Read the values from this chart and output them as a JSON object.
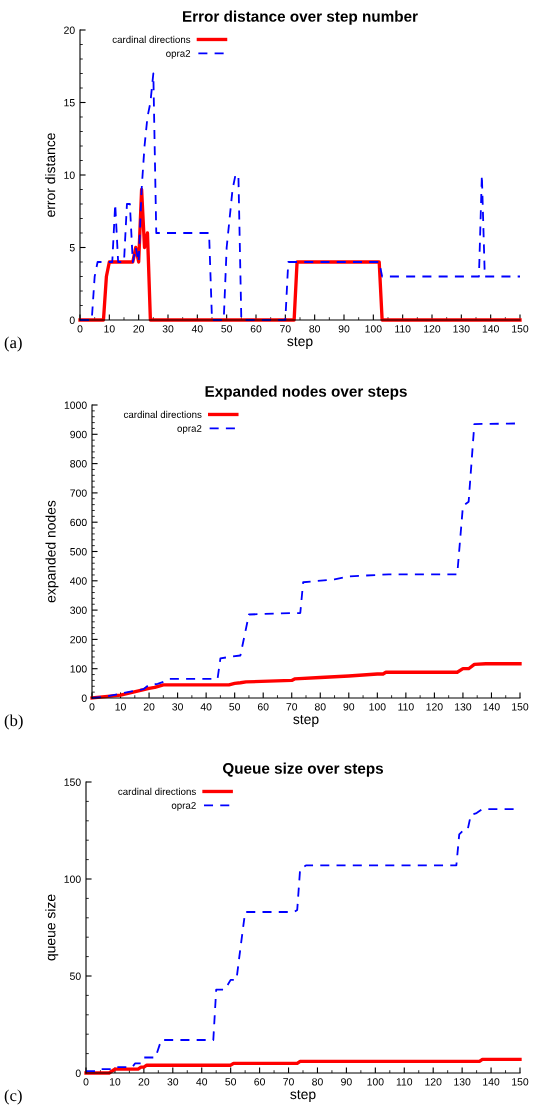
{
  "chart_data": [
    {
      "type": "line",
      "title": "Error distance over step number",
      "xlabel": "step",
      "ylabel": "error distance",
      "xlim": [
        0,
        150
      ],
      "xticks": [
        0,
        10,
        20,
        30,
        40,
        50,
        60,
        70,
        80,
        90,
        100,
        110,
        120,
        130,
        140,
        150
      ],
      "ylim": [
        0,
        20
      ],
      "yticks": [
        0,
        5,
        10,
        15,
        20
      ],
      "legend": "top left",
      "grid": false,
      "annotations": [
        "(a)"
      ],
      "series": [
        {
          "name": "cardinal directions",
          "color": "#ff0000",
          "line_style": "solid",
          "x": [
            0,
            8,
            9,
            10,
            18,
            19,
            20,
            21,
            22,
            23,
            24,
            73,
            74,
            102,
            103,
            150
          ],
          "values": [
            0,
            0,
            3,
            4,
            4,
            5,
            4,
            9,
            5,
            6,
            0,
            0,
            4,
            4,
            0,
            0
          ]
        },
        {
          "name": "opra2",
          "color": "#0000ff",
          "line_style": "dashed",
          "x": [
            0,
            4,
            5,
            6,
            11,
            12,
            13,
            15,
            16,
            17,
            18,
            19,
            20,
            21,
            22,
            23,
            24,
            25,
            26,
            44,
            45,
            49,
            50,
            52,
            53,
            54,
            55,
            70,
            71,
            102,
            103,
            136,
            137,
            138,
            150
          ],
          "values": [
            0,
            0,
            3,
            4,
            4,
            8,
            4,
            4,
            8,
            8,
            4,
            5,
            4,
            9,
            12,
            14,
            15,
            17,
            6,
            6,
            0,
            0,
            5,
            9,
            10,
            10,
            0,
            0,
            4,
            4,
            3,
            3,
            10,
            3,
            3
          ]
        }
      ]
    },
    {
      "type": "line",
      "title": "Expanded nodes over steps",
      "xlabel": "step",
      "ylabel": "expanded nodes",
      "xlim": [
        0,
        150
      ],
      "xticks": [
        0,
        10,
        20,
        30,
        40,
        50,
        60,
        70,
        80,
        90,
        100,
        110,
        120,
        130,
        140,
        150
      ],
      "ylim": [
        0,
        1000
      ],
      "yticks": [
        0,
        100,
        200,
        300,
        400,
        500,
        600,
        700,
        800,
        900,
        1000
      ],
      "legend": "top left",
      "grid": false,
      "annotations": [
        "(b)"
      ],
      "series": [
        {
          "name": "cardinal directions",
          "color": "#ff0000",
          "line_style": "solid",
          "x": [
            0,
            10,
            20,
            22,
            25,
            48,
            50,
            52,
            54,
            70,
            71,
            80,
            90,
            100,
            102,
            103,
            128,
            130,
            132,
            134,
            138,
            150
          ],
          "values": [
            0,
            10,
            33,
            36,
            45,
            45,
            50,
            52,
            55,
            60,
            65,
            70,
            75,
            82,
            82,
            88,
            88,
            100,
            100,
            115,
            117,
            117
          ]
        },
        {
          "name": "opra2",
          "color": "#0000ff",
          "line_style": "dashed",
          "x": [
            0,
            5,
            10,
            15,
            18,
            20,
            23,
            25,
            27,
            44,
            45,
            48,
            52,
            55,
            70,
            73,
            74,
            85,
            90,
            100,
            104,
            128,
            130,
            132,
            134,
            150
          ],
          "values": [
            0,
            5,
            15,
            25,
            30,
            45,
            48,
            55,
            65,
            65,
            135,
            140,
            145,
            285,
            290,
            290,
            395,
            405,
            415,
            420,
            422,
            422,
            655,
            670,
            935,
            937
          ]
        }
      ]
    },
    {
      "type": "line",
      "title": "Queue size over steps",
      "xlabel": "step",
      "ylabel": "queue size",
      "xlim": [
        0,
        150
      ],
      "xticks": [
        0,
        10,
        20,
        30,
        40,
        50,
        60,
        70,
        80,
        90,
        100,
        110,
        120,
        130,
        140,
        150
      ],
      "ylim": [
        0,
        150
      ],
      "yticks": [
        0,
        50,
        100,
        150
      ],
      "legend": "top left",
      "grid": false,
      "annotations": [
        "(c)"
      ],
      "series": [
        {
          "name": "cardinal directions",
          "color": "#ff0000",
          "line_style": "solid",
          "x": [
            0,
            8,
            10,
            18,
            19,
            20,
            21,
            50,
            51,
            73,
            74,
            136,
            137,
            150
          ],
          "values": [
            0,
            0,
            2,
            2,
            3,
            3,
            4,
            4,
            5,
            5,
            6,
            6,
            7,
            7
          ]
        },
        {
          "name": "opra2",
          "color": "#0000ff",
          "line_style": "dashed",
          "x": [
            0,
            4,
            5,
            9,
            10,
            16,
            17,
            19,
            20,
            24,
            26,
            44,
            45,
            48,
            50,
            52,
            53,
            55,
            72,
            73,
            74,
            76,
            128,
            129,
            131,
            132,
            133,
            135,
            137,
            150
          ],
          "values": [
            1,
            1,
            2,
            2,
            3,
            3,
            5,
            5,
            8,
            8,
            17,
            17,
            43,
            43,
            48,
            48,
            60,
            83,
            83,
            84,
            105,
            107,
            107,
            123,
            126,
            126,
            133,
            134,
            136,
            136
          ]
        }
      ]
    }
  ]
}
